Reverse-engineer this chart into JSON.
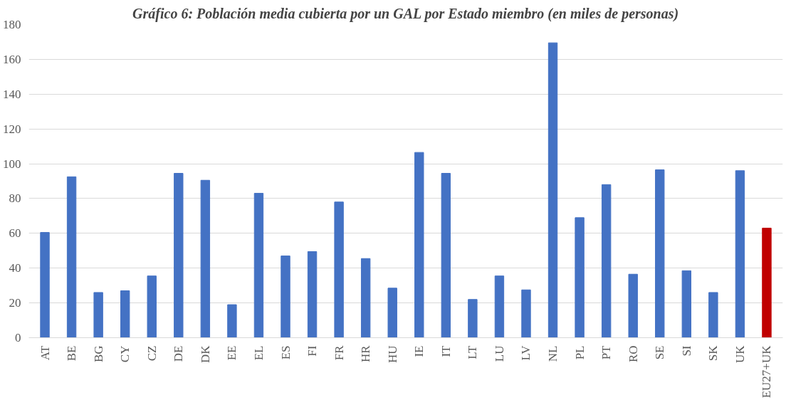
{
  "chart_data": {
    "type": "bar",
    "title": "Gráfico 6: Población media cubierta por un GAL por Estado miembro (en miles de personas)",
    "categories": [
      "AT",
      "BE",
      "BG",
      "CY",
      "CZ",
      "DE",
      "DK",
      "EE",
      "EL",
      "ES",
      "FI",
      "FR",
      "HR",
      "HU",
      "IE",
      "IT",
      "LT",
      "LU",
      "LV",
      "NL",
      "PL",
      "PT",
      "RO",
      "SE",
      "SI",
      "SK",
      "UK",
      "EU27+UK"
    ],
    "values": [
      60.5,
      92.5,
      26,
      27,
      35.5,
      94.5,
      90.5,
      19,
      83,
      47,
      49.5,
      78,
      45.5,
      28.5,
      106.5,
      94.5,
      22,
      35.5,
      27.5,
      169.5,
      69,
      88,
      36.5,
      96.5,
      38.5,
      26,
      96,
      63
    ],
    "colors": [
      "#4472c4",
      "#4472c4",
      "#4472c4",
      "#4472c4",
      "#4472c4",
      "#4472c4",
      "#4472c4",
      "#4472c4",
      "#4472c4",
      "#4472c4",
      "#4472c4",
      "#4472c4",
      "#4472c4",
      "#4472c4",
      "#4472c4",
      "#4472c4",
      "#4472c4",
      "#4472c4",
      "#4472c4",
      "#4472c4",
      "#4472c4",
      "#4472c4",
      "#4472c4",
      "#4472c4",
      "#4472c4",
      "#4472c4",
      "#4472c4",
      "#c00000"
    ],
    "ylim": [
      0,
      180
    ],
    "yticks": [
      0,
      20,
      40,
      60,
      80,
      100,
      120,
      140,
      160,
      180
    ],
    "grid": "y"
  }
}
